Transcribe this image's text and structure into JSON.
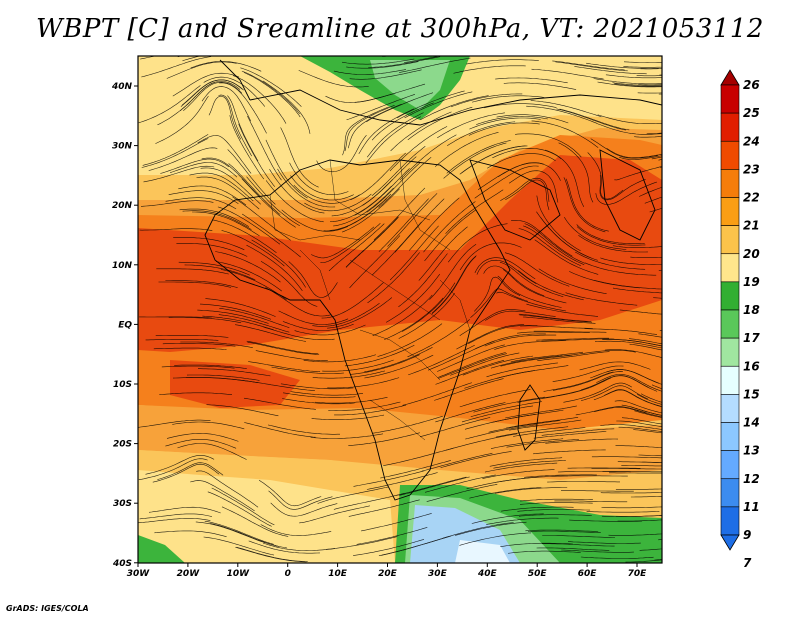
{
  "title": "WBPT [C] and Sreamline at 300hPa, VT: 2021053112",
  "footer": "GrADS: IGES/COLA",
  "map": {
    "lat_ticks": [
      "40N",
      "30N",
      "20N",
      "10N",
      "EQ",
      "10S",
      "20S",
      "30S",
      "40S"
    ],
    "lon_ticks": [
      "30W",
      "20W",
      "10W",
      "0",
      "10E",
      "20E",
      "30E",
      "40E",
      "50E",
      "60E",
      "70E"
    ]
  },
  "colorbar": {
    "levels": [
      "26",
      "25",
      "24",
      "23",
      "22",
      "21",
      "20",
      "19",
      "18",
      "17",
      "16",
      "15",
      "14",
      "13",
      "12",
      "11",
      "9",
      "7"
    ],
    "colors": [
      "#a50000",
      "#c80000",
      "#e11e00",
      "#f04b00",
      "#f57d0a",
      "#fa9e14",
      "#fcc34b",
      "#ffe68c",
      "#32af32",
      "#5ac85a",
      "#a0e6a0",
      "#e6ffff",
      "#b4dcff",
      "#8cc8ff",
      "#64aaff",
      "#3c8cf0",
      "#1e6ee6",
      "#1e6ee6"
    ]
  },
  "field_palette": {
    "red": "#e84a10",
    "orange": "#f5801c",
    "light_orange": "#f7a23a",
    "tan": "#fbc55a",
    "yellow": "#fee28a",
    "green": "#3cb43c",
    "light_green": "#8cd98c",
    "light_blue": "#a8d4f5",
    "pale": "#e8f7ff"
  }
}
